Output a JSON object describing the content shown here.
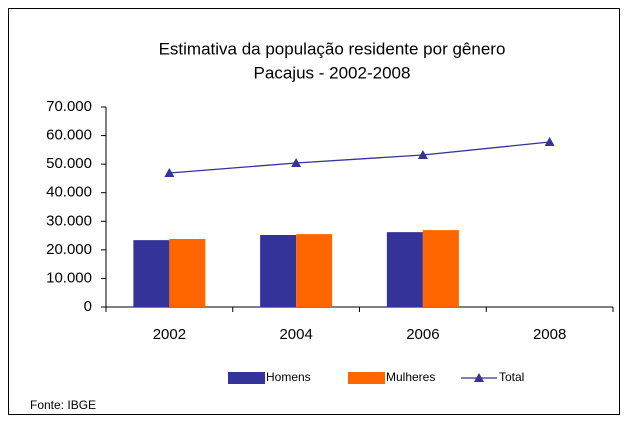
{
  "chart_data": {
    "type": "bar",
    "title": "Estimativa da população residente por gênero",
    "subtitle": "Pacajus -  2002-2008",
    "source": "Fonte: IBGE",
    "categories": [
      "2002",
      "2004",
      "2006",
      "2008"
    ],
    "series": [
      {
        "name": "Homens",
        "color": "#333399",
        "type": "bar",
        "values": [
          23400,
          25200,
          26200,
          null
        ]
      },
      {
        "name": "Mulheres",
        "color": "#ff6600",
        "type": "bar",
        "values": [
          23800,
          25500,
          26900,
          null
        ]
      },
      {
        "name": "Total",
        "color": "#333399",
        "type": "line",
        "values": [
          46900,
          50400,
          53200,
          57750
        ]
      }
    ],
    "ylim": [
      0,
      70000
    ],
    "yticks": [
      0,
      {
        "value": 10000,
        "label": "10.000"
      },
      {
        "value": 20000,
        "label": "20.000"
      },
      {
        "value": 30000,
        "label": "30.000"
      },
      {
        "value": 40000,
        "label": "40.000"
      },
      {
        "value": 50000,
        "label": "50.000"
      },
      {
        "value": 60000,
        "label": "60.000"
      },
      {
        "value": 70000,
        "label": "70.000"
      }
    ],
    "legend": "bottom"
  }
}
